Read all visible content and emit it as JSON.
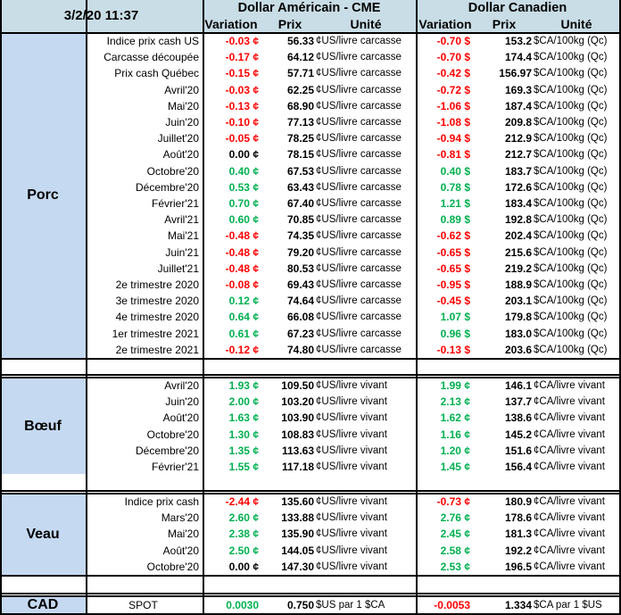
{
  "header": {
    "date": "3/2/20 11:37",
    "usd_title": "Dollar Américain - CME",
    "cad_title": "Dollar Canadien",
    "col_variation": "Variation",
    "col_prix": "Prix",
    "col_unite": "Unité"
  },
  "sections": [
    {
      "name": "Porc",
      "rows": [
        {
          "label": "Indice prix cash US",
          "us_var": "-0.03 ¢",
          "us_prix": "56.33",
          "us_unit": "¢US/livre carcasse",
          "ca_var": "-0.70 $",
          "ca_prix": "153.2",
          "ca_unit": "$CA/100kg (Qc)",
          "us_sign": "neg",
          "ca_sign": "neg"
        },
        {
          "label": "Carcasse découpée",
          "us_var": "-0.17 ¢",
          "us_prix": "64.12",
          "us_unit": "¢US/livre carcasse",
          "ca_var": "-0.70 $",
          "ca_prix": "174.4",
          "ca_unit": "$CA/100kg (Qc)",
          "us_sign": "neg",
          "ca_sign": "neg"
        },
        {
          "label": "Prix cash Québec",
          "us_var": "-0.15 ¢",
          "us_prix": "57.71",
          "us_unit": "¢US/livre carcasse",
          "ca_var": "-0.42 $",
          "ca_prix": "156.97",
          "ca_unit": "$CA/100kg (Qc)",
          "us_sign": "neg",
          "ca_sign": "neg"
        },
        {
          "label": "Avril'20",
          "us_var": "-0.03 ¢",
          "us_prix": "62.25",
          "us_unit": "¢US/livre carcasse",
          "ca_var": "-0.72 $",
          "ca_prix": "169.3",
          "ca_unit": "$CA/100kg (Qc)",
          "us_sign": "neg",
          "ca_sign": "neg"
        },
        {
          "label": "Mai'20",
          "us_var": "-0.13 ¢",
          "us_prix": "68.90",
          "us_unit": "¢US/livre carcasse",
          "ca_var": "-1.06 $",
          "ca_prix": "187.4",
          "ca_unit": "$CA/100kg (Qc)",
          "us_sign": "neg",
          "ca_sign": "neg"
        },
        {
          "label": "Juin'20",
          "us_var": "-0.10 ¢",
          "us_prix": "77.13",
          "us_unit": "¢US/livre carcasse",
          "ca_var": "-1.08 $",
          "ca_prix": "209.8",
          "ca_unit": "$CA/100kg (Qc)",
          "us_sign": "neg",
          "ca_sign": "neg"
        },
        {
          "label": "Juillet'20",
          "us_var": "-0.05 ¢",
          "us_prix": "78.25",
          "us_unit": "¢US/livre carcasse",
          "ca_var": "-0.94 $",
          "ca_prix": "212.9",
          "ca_unit": "$CA/100kg (Qc)",
          "us_sign": "neg",
          "ca_sign": "neg"
        },
        {
          "label": "Août'20",
          "us_var": "0.00 ¢",
          "us_prix": "78.15",
          "us_unit": "¢US/livre carcasse",
          "ca_var": "-0.81 $",
          "ca_prix": "212.7",
          "ca_unit": "$CA/100kg (Qc)",
          "us_sign": "zero",
          "ca_sign": "neg"
        },
        {
          "label": "Octobre'20",
          "us_var": "0.40 ¢",
          "us_prix": "67.53",
          "us_unit": "¢US/livre carcasse",
          "ca_var": "0.40 $",
          "ca_prix": "183.7",
          "ca_unit": "$CA/100kg (Qc)",
          "us_sign": "pos",
          "ca_sign": "pos"
        },
        {
          "label": "Décembre'20",
          "us_var": "0.53 ¢",
          "us_prix": "63.43",
          "us_unit": "¢US/livre carcasse",
          "ca_var": "0.78 $",
          "ca_prix": "172.6",
          "ca_unit": "$CA/100kg (Qc)",
          "us_sign": "pos",
          "ca_sign": "pos"
        },
        {
          "label": "Février'21",
          "us_var": "0.70 ¢",
          "us_prix": "67.40",
          "us_unit": "¢US/livre carcasse",
          "ca_var": "1.21 $",
          "ca_prix": "183.4",
          "ca_unit": "$CA/100kg (Qc)",
          "us_sign": "pos",
          "ca_sign": "pos"
        },
        {
          "label": "Avril'21",
          "us_var": "0.60 ¢",
          "us_prix": "70.85",
          "us_unit": "¢US/livre carcasse",
          "ca_var": "0.89 $",
          "ca_prix": "192.8",
          "ca_unit": "$CA/100kg (Qc)",
          "us_sign": "pos",
          "ca_sign": "pos"
        },
        {
          "label": "Mai'21",
          "us_var": "-0.48 ¢",
          "us_prix": "74.35",
          "us_unit": "¢US/livre carcasse",
          "ca_var": "-0.62 $",
          "ca_prix": "202.4",
          "ca_unit": "$CA/100kg (Qc)",
          "us_sign": "neg",
          "ca_sign": "neg"
        },
        {
          "label": "Juin'21",
          "us_var": "-0.48 ¢",
          "us_prix": "79.20",
          "us_unit": "¢US/livre carcasse",
          "ca_var": "-0.65 $",
          "ca_prix": "215.6",
          "ca_unit": "$CA/100kg (Qc)",
          "us_sign": "neg",
          "ca_sign": "neg"
        },
        {
          "label": "Juillet'21",
          "us_var": "-0.48 ¢",
          "us_prix": "80.53",
          "us_unit": "¢US/livre carcasse",
          "ca_var": "-0.65 $",
          "ca_prix": "219.2",
          "ca_unit": "$CA/100kg (Qc)",
          "us_sign": "neg",
          "ca_sign": "neg"
        },
        {
          "label": "2e trimestre 2020",
          "us_var": "-0.08 ¢",
          "us_prix": "69.43",
          "us_unit": "¢US/livre carcasse",
          "ca_var": "-0.95 $",
          "ca_prix": "188.9",
          "ca_unit": "$CA/100kg (Qc)",
          "us_sign": "neg",
          "ca_sign": "neg"
        },
        {
          "label": "3e trimestre 2020",
          "us_var": "0.12 ¢",
          "us_prix": "74.64",
          "us_unit": "¢US/livre carcasse",
          "ca_var": "-0.45 $",
          "ca_prix": "203.1",
          "ca_unit": "$CA/100kg (Qc)",
          "us_sign": "pos",
          "ca_sign": "neg"
        },
        {
          "label": "4e trimestre 2020",
          "us_var": "0.64 ¢",
          "us_prix": "66.08",
          "us_unit": "¢US/livre carcasse",
          "ca_var": "1.07 $",
          "ca_prix": "179.8",
          "ca_unit": "$CA/100kg (Qc)",
          "us_sign": "pos",
          "ca_sign": "pos"
        },
        {
          "label": "1er trimestre 2021",
          "us_var": "0.61 ¢",
          "us_prix": "67.23",
          "us_unit": "¢US/livre carcasse",
          "ca_var": "0.96 $",
          "ca_prix": "183.0",
          "ca_unit": "$CA/100kg (Qc)",
          "us_sign": "pos",
          "ca_sign": "pos"
        },
        {
          "label": "2e trimestre 2021",
          "us_var": "-0.12 ¢",
          "us_prix": "74.80",
          "us_unit": "¢US/livre carcasse",
          "ca_var": "-0.13 $",
          "ca_prix": "203.6",
          "ca_unit": "$CA/100kg (Qc)",
          "us_sign": "neg",
          "ca_sign": "neg"
        }
      ]
    },
    {
      "name": "Bœuf",
      "rows": [
        {
          "label": "Avril'20",
          "us_var": "1.93 ¢",
          "us_prix": "109.50",
          "us_unit": "¢US/livre vivant",
          "ca_var": "1.99 ¢",
          "ca_prix": "146.1",
          "ca_unit": "¢CA/livre vivant",
          "us_sign": "pos",
          "ca_sign": "pos"
        },
        {
          "label": "Juin'20",
          "us_var": "2.00 ¢",
          "us_prix": "103.20",
          "us_unit": "¢US/livre vivant",
          "ca_var": "2.13 ¢",
          "ca_prix": "137.7",
          "ca_unit": "¢CA/livre vivant",
          "us_sign": "pos",
          "ca_sign": "pos"
        },
        {
          "label": "Août'20",
          "us_var": "1.63 ¢",
          "us_prix": "103.90",
          "us_unit": "¢US/livre vivant",
          "ca_var": "1.62 ¢",
          "ca_prix": "138.6",
          "ca_unit": "¢CA/livre vivant",
          "us_sign": "pos",
          "ca_sign": "pos"
        },
        {
          "label": "Octobre'20",
          "us_var": "1.30 ¢",
          "us_prix": "108.83",
          "us_unit": "¢US/livre vivant",
          "ca_var": "1.16 ¢",
          "ca_prix": "145.2",
          "ca_unit": "¢CA/livre vivant",
          "us_sign": "pos",
          "ca_sign": "pos"
        },
        {
          "label": "Décembre'20",
          "us_var": "1.35 ¢",
          "us_prix": "113.63",
          "us_unit": "¢US/livre vivant",
          "ca_var": "1.20 ¢",
          "ca_prix": "151.6",
          "ca_unit": "¢CA/livre vivant",
          "us_sign": "pos",
          "ca_sign": "pos"
        },
        {
          "label": "Février'21",
          "us_var": "1.55 ¢",
          "us_prix": "117.18",
          "us_unit": "¢US/livre vivant",
          "ca_var": "1.45 ¢",
          "ca_prix": "156.4",
          "ca_unit": "¢CA/livre vivant",
          "us_sign": "pos",
          "ca_sign": "pos"
        }
      ]
    },
    {
      "name": "Veau",
      "rows": [
        {
          "label": "Indice prix cash",
          "us_var": "-2.44 ¢",
          "us_prix": "135.60",
          "us_unit": "¢US/livre vivant",
          "ca_var": "-0.73 ¢",
          "ca_prix": "180.9",
          "ca_unit": "¢CA/livre vivant",
          "us_sign": "neg",
          "ca_sign": "neg"
        },
        {
          "label": "Mars'20",
          "us_var": "2.60 ¢",
          "us_prix": "133.88",
          "us_unit": "¢US/livre vivant",
          "ca_var": "2.76 ¢",
          "ca_prix": "178.6",
          "ca_unit": "¢CA/livre vivant",
          "us_sign": "pos",
          "ca_sign": "pos"
        },
        {
          "label": "Mai'20",
          "us_var": "2.38 ¢",
          "us_prix": "135.90",
          "us_unit": "¢US/livre vivant",
          "ca_var": "2.45 ¢",
          "ca_prix": "181.3",
          "ca_unit": "¢CA/livre vivant",
          "us_sign": "pos",
          "ca_sign": "pos"
        },
        {
          "label": "Août'20",
          "us_var": "2.50 ¢",
          "us_prix": "144.05",
          "us_unit": "¢US/livre vivant",
          "ca_var": "2.58 ¢",
          "ca_prix": "192.2",
          "ca_unit": "¢CA/livre vivant",
          "us_sign": "pos",
          "ca_sign": "pos"
        },
        {
          "label": "Octobre'20",
          "us_var": "0.00 ¢",
          "us_prix": "147.30",
          "us_unit": "¢US/livre vivant",
          "ca_var": "2.53 ¢",
          "ca_prix": "196.5",
          "ca_unit": "¢CA/livre vivant",
          "us_sign": "zero",
          "ca_sign": "pos"
        }
      ]
    }
  ],
  "cad_row": {
    "name": "CAD",
    "label": "SPOT",
    "us_var": "0.0030",
    "us_prix": "0.750",
    "us_unit": "$US par 1 $CA",
    "ca_var": "-0.0053",
    "ca_prix": "1.334",
    "ca_unit": "$CA par 1 $US",
    "us_sign": "pos",
    "ca_sign": "neg"
  },
  "colors": {
    "header_bg": "#c9dde6",
    "section_bg": "#c5d9f1",
    "negative": "#ff0000",
    "positive": "#00b050"
  }
}
